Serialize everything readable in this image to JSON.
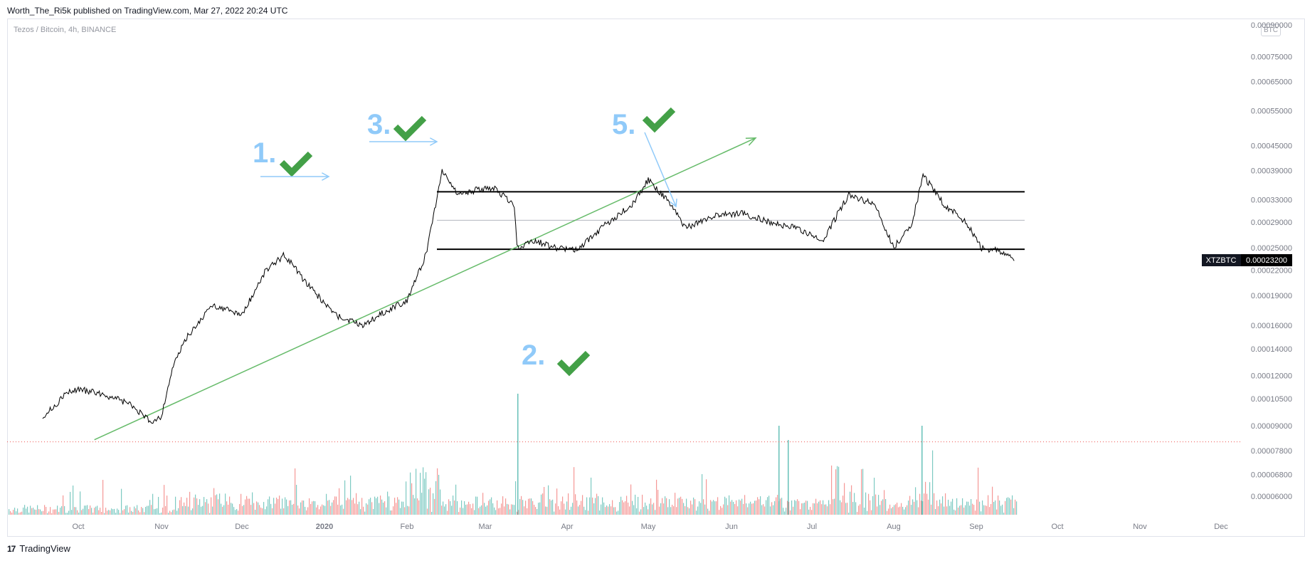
{
  "header": {
    "published_text": "Worth_The_Ri5k published on TradingView.com, Mar 27, 2022 20:24 UTC"
  },
  "chart": {
    "symbol_label": "Tezos / Bitcoin, 4h, BINANCE",
    "currency_badge": "BTC",
    "price_tag_symbol": "XTZBTC",
    "price_tag_value": "0.00023200"
  },
  "footer": {
    "logo_text": "TradingView",
    "logo_mark": "17"
  },
  "colors": {
    "price_line": "#000000",
    "trendline": "#66bb6a",
    "arrow": "#90caf9",
    "check": "#43a047",
    "annotation_text": "#90caf9",
    "volume_up": "#26a69a",
    "volume_down": "#ef5350",
    "dotted_level": "#ef5350",
    "axis_text": "#787b86"
  },
  "annotations": [
    {
      "label": "1.",
      "icon": "check-icon"
    },
    {
      "label": "2.",
      "icon": "check-icon"
    },
    {
      "label": "3.",
      "icon": "check-icon"
    },
    {
      "label": "5.",
      "icon": "check-icon"
    }
  ],
  "chart_data": {
    "type": "line",
    "title": "",
    "scale": "log",
    "x_tick_labels": [
      "Oct",
      "Nov",
      "Dec",
      "2020",
      "Feb",
      "Mar",
      "Apr",
      "May",
      "Jun",
      "Jul",
      "Aug",
      "Sep",
      "Oct",
      "Nov",
      "Dec"
    ],
    "y_tick_labels": [
      "0.00090000",
      "0.00075000",
      "0.00065000",
      "0.00055000",
      "0.00045000",
      "0.00039000",
      "0.00033000",
      "0.00029000",
      "0.00025000",
      "0.00022000",
      "0.00019000",
      "0.00016000",
      "0.00014000",
      "0.00012000",
      "0.00010500",
      "0.00009000",
      "0.00007800",
      "0.00006800",
      "0.00006000"
    ],
    "ylim": [
      5.2e-05,
      0.0009
    ],
    "price_series": {
      "name": "XTZBTC",
      "x": [
        "2019-09-01",
        "2019-09-10",
        "2019-09-20",
        "2019-10-01",
        "2019-10-10",
        "2019-10-20",
        "2019-10-28",
        "2019-11-01",
        "2019-11-05",
        "2019-11-10",
        "2019-11-20",
        "2019-12-01",
        "2019-12-10",
        "2019-12-17",
        "2019-12-25",
        "2020-01-05",
        "2020-01-15",
        "2020-01-25",
        "2020-02-01",
        "2020-02-08",
        "2020-02-14",
        "2020-02-20",
        "2020-02-28",
        "2020-03-05",
        "2020-03-12",
        "2020-03-13",
        "2020-03-20",
        "2020-03-28",
        "2020-04-05",
        "2020-04-15",
        "2020-04-25",
        "2020-05-01",
        "2020-05-08",
        "2020-05-15",
        "2020-05-25",
        "2020-06-05",
        "2020-06-15",
        "2020-06-25",
        "2020-07-05",
        "2020-07-15",
        "2020-07-25",
        "2020-08-01",
        "2020-08-08",
        "2020-08-12",
        "2020-08-20",
        "2020-08-28",
        "2020-09-03",
        "2020-09-10",
        "2020-09-15"
      ],
      "y": [
        9.5e-05,
        0.0001,
        0.000108,
        0.000111,
        0.000108,
        0.000102,
        9.2e-05,
        9.5e-05,
        0.000125,
        0.000148,
        0.00018,
        0.00017,
        0.00022,
        0.00024,
        0.000205,
        0.00017,
        0.00016,
        0.000175,
        0.000185,
        0.00024,
        0.00039,
        0.00034,
        0.00035,
        0.00035,
        0.00032,
        0.00025,
        0.00026,
        0.00025,
        0.000248,
        0.000285,
        0.00032,
        0.00037,
        0.00033,
        0.00028,
        0.0003,
        0.000305,
        0.00029,
        0.00028,
        0.00026,
        0.00034,
        0.00032,
        0.00025,
        0.00029,
        0.00038,
        0.00032,
        0.00029,
        0.00025,
        0.000245,
        0.000232
      ]
    },
    "resistance_level": 0.000345,
    "mid_level": 0.000293,
    "support_level": 0.000248,
    "dotted_level": 8.2e-05,
    "trendline": {
      "x": [
        "2019-10-07",
        "2020-06-10"
      ],
      "y": [
        8.3e-05,
        0.00047
      ]
    },
    "current_price": 0.000232
  }
}
